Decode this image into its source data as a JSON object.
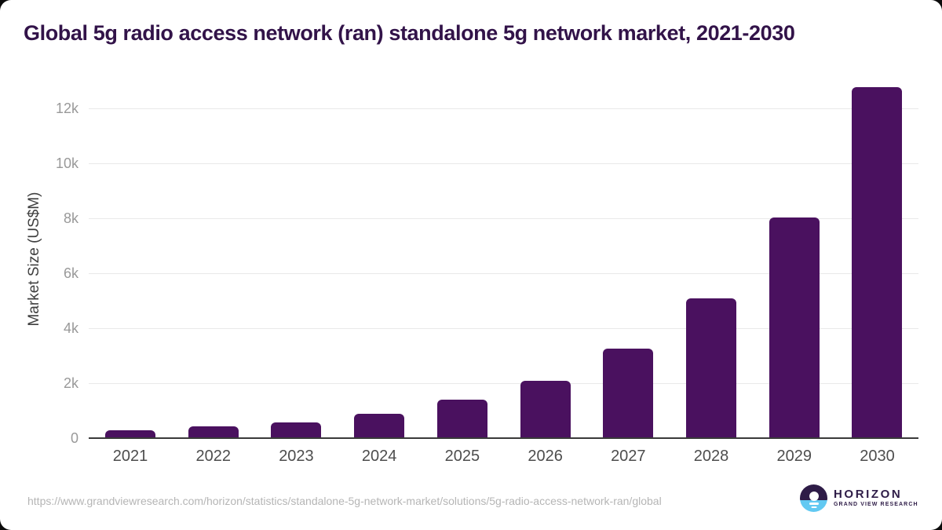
{
  "title": "Global 5g radio access network (ran) standalone 5g network market, 2021-2030",
  "chart_data": {
    "type": "bar",
    "categories": [
      "2021",
      "2022",
      "2023",
      "2024",
      "2025",
      "2026",
      "2027",
      "2028",
      "2029",
      "2030"
    ],
    "values": [
      290,
      420,
      565,
      880,
      1390,
      2085,
      3250,
      5100,
      8020,
      12770
    ],
    "title": "Global 5g radio access network (ran) standalone 5g network market, 2021-2030",
    "xlabel": "",
    "ylabel": "Market Size (US$M)",
    "ylim": [
      0,
      13100
    ],
    "yticks": {
      "values": [
        0,
        2000,
        4000,
        6000,
        8000,
        10000,
        12000
      ],
      "labels": [
        "0",
        "2k",
        "4k",
        "6k",
        "8k",
        "10k",
        "12k"
      ]
    },
    "legend": "none",
    "grid": "horizontal",
    "bar_color": "#4a115f"
  },
  "colors": {
    "title": "#321349",
    "bar": "#4a115f",
    "grid": "#e9e9e9",
    "axis_line": "#3a3a3a",
    "y_tick_label": "#999999",
    "x_tick_label": "#4d4d4d",
    "y_axis_title": "#3f3f3f",
    "footer_url": "#b5b5b5",
    "logo_purple": "#2e1c47",
    "logo_blue": "#62c9f2"
  },
  "footer": {
    "source_url": "https://www.grandviewresearch.com/horizon/statistics/standalone-5g-network-market/solutions/5g-radio-access-network-ran/global",
    "logo": {
      "brand": "HORIZON",
      "subbrand": "GRAND VIEW RESEARCH"
    }
  }
}
